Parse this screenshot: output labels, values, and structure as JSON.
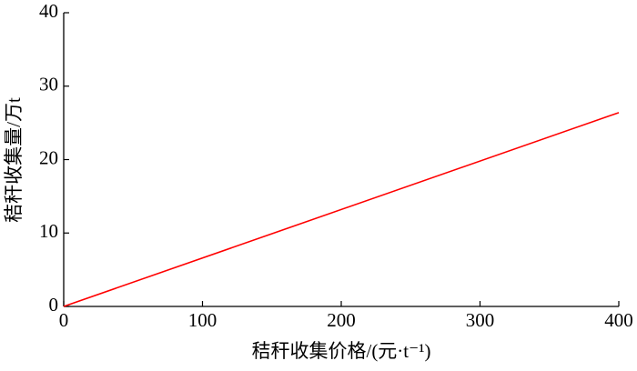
{
  "chart_data": {
    "type": "line",
    "x_label": "秸秆收集价格/(元·t⁻¹)",
    "y_label": "秸秆收集量/万t",
    "x": [
      0,
      400
    ],
    "series": [
      {
        "name": "秸秆收集量",
        "color": "#ff0000",
        "values": [
          0,
          26.4
        ]
      }
    ],
    "xlim": [
      0,
      400
    ],
    "xticks": [
      0,
      100,
      200,
      300,
      400
    ],
    "ylim": [
      0,
      40
    ],
    "yticks": [
      0,
      10,
      20,
      30,
      40
    ],
    "grid": false
  }
}
